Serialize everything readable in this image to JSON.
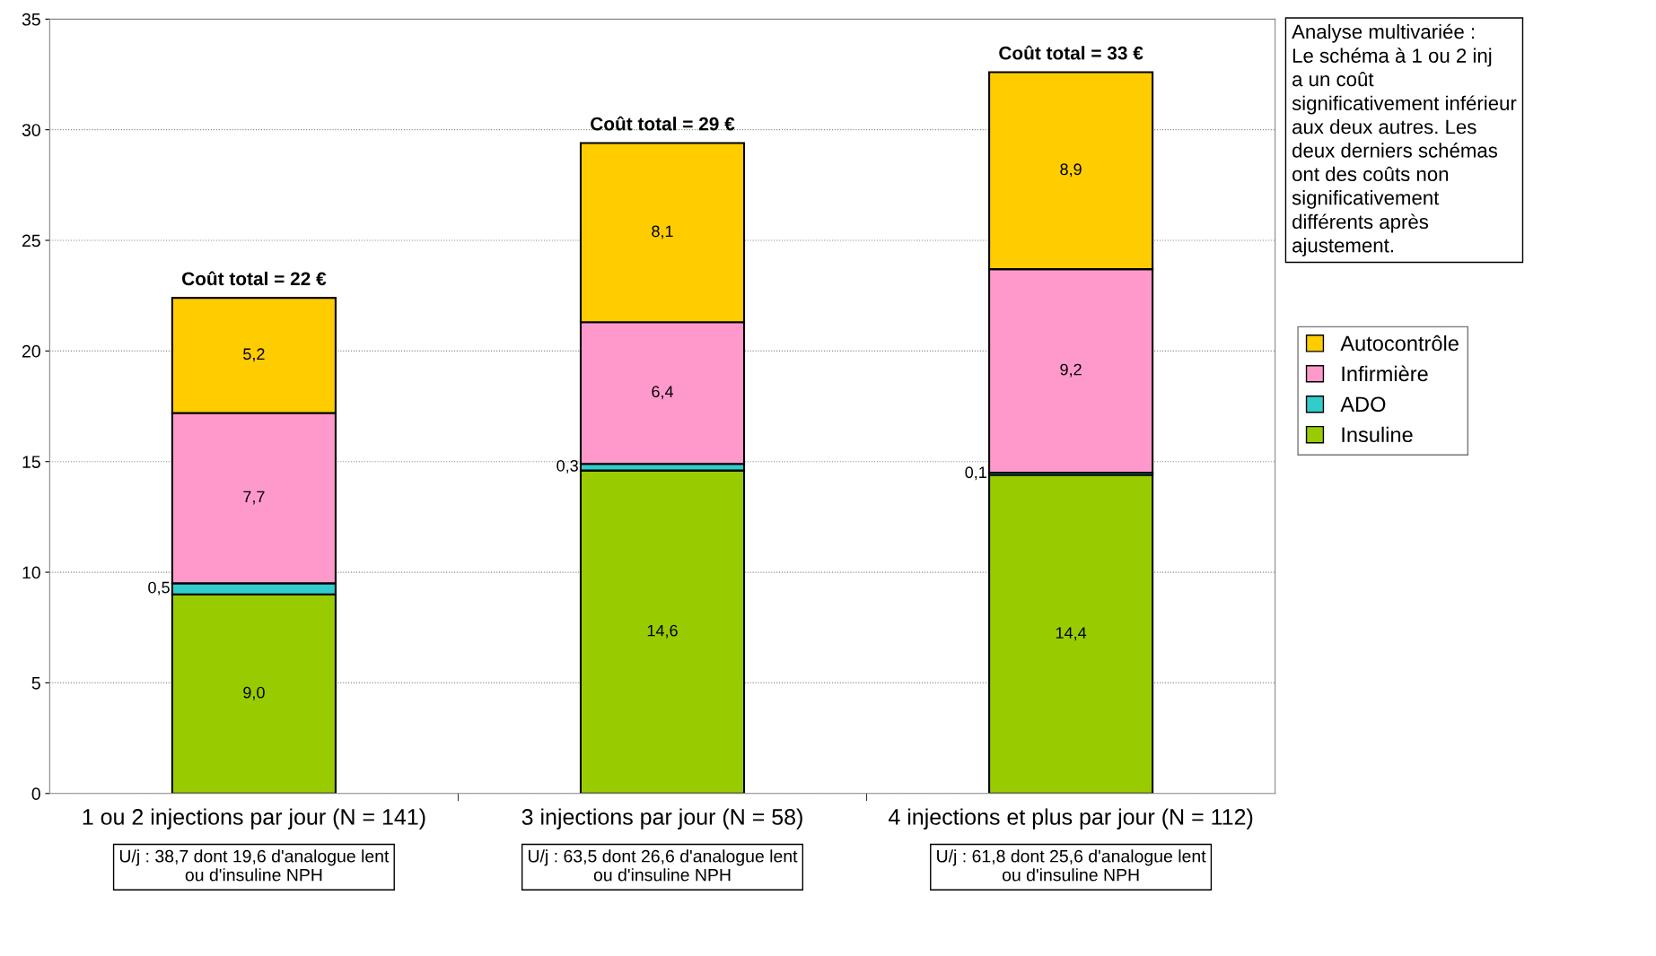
{
  "chart_data": {
    "type": "bar",
    "stacked": true,
    "categories": [
      "1 ou 2 injections par jour (N = 141)",
      "3 injections par jour (N = 58)",
      "4 injections et plus par jour (N = 112)"
    ],
    "series": [
      {
        "name": "Insuline",
        "color": "#99cc00",
        "values": [
          9.0,
          14.6,
          14.4
        ],
        "value_labels": [
          "9,0",
          "14,6",
          "14,4"
        ]
      },
      {
        "name": "ADO",
        "color": "#33cccc",
        "values": [
          0.5,
          0.3,
          0.1
        ],
        "value_labels": [
          "0,5",
          "0,3",
          "0,1"
        ]
      },
      {
        "name": "Infirmière",
        "color": "#ff99cc",
        "values": [
          7.7,
          6.4,
          9.2
        ],
        "value_labels": [
          "7,7",
          "6,4",
          "9,2"
        ]
      },
      {
        "name": "Autocontrôle",
        "color": "#ffcc00",
        "values": [
          5.2,
          8.1,
          8.9
        ],
        "value_labels": [
          "5,2",
          "8,1",
          "8,9"
        ]
      }
    ],
    "totals": [
      "Coût total = 22 €",
      "Coût total = 29 €",
      "Coût total = 33 €"
    ],
    "ylim": [
      0,
      35
    ],
    "yticks": [
      0,
      5,
      10,
      15,
      20,
      25,
      30,
      35
    ],
    "grid": "y",
    "legend": "right",
    "annotations": [
      "Analyse multivariée :\nLe schéma à 1 ou 2 inj\na un coût\nsignificativement inférieur\naux deux autres. Les\ndeux derniers schémas\nont des coûts non\nsignificativement\ndifférents après\najustement.",
      "U/j : 38,7 dont 19,6 d'analogue lent\nou d'insuline NPH",
      "U/j : 63,5 dont 26,6 d'analogue lent\nou d'insuline NPH",
      "U/j : 61,8 dont 25,6 d'analogue lent\nou d'insuline NPH"
    ]
  }
}
